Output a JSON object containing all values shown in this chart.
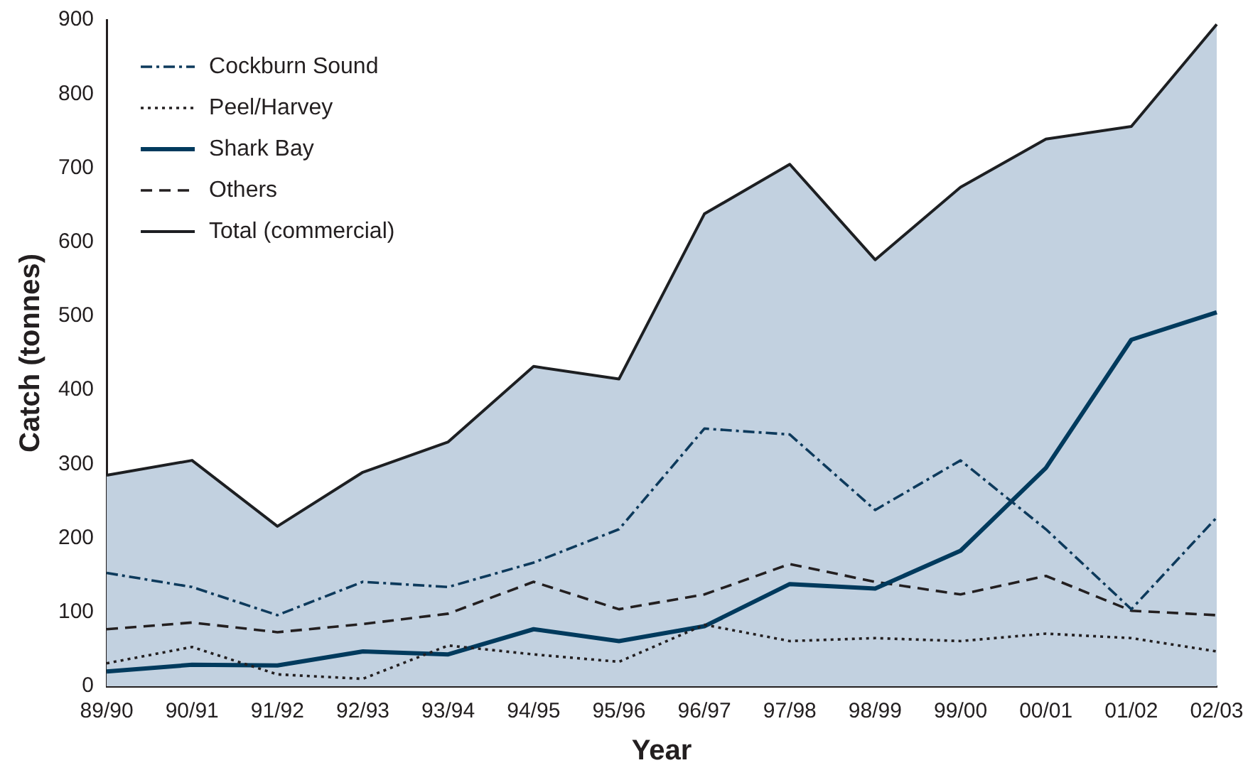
{
  "chart_data": {
    "type": "line",
    "xlabel": "Year",
    "ylabel": "Catch (tonnes)",
    "categories": [
      "89/90",
      "90/91",
      "91/92",
      "92/93",
      "93/94",
      "94/95",
      "95/96",
      "96/97",
      "97/98",
      "98/99",
      "99/00",
      "00/01",
      "01/02",
      "02/03"
    ],
    "series": [
      {
        "name": "Cockburn Sound",
        "color": "#0d3a5c",
        "line_style": "dashdot",
        "values": [
          153,
          134,
          96,
          141,
          134,
          167,
          212,
          348,
          340,
          238,
          305,
          212,
          104,
          228
        ]
      },
      {
        "name": "Peel/Harvey",
        "color": "#231f20",
        "line_style": "dotted",
        "values": [
          31,
          53,
          16,
          10,
          55,
          43,
          33,
          83,
          61,
          65,
          61,
          71,
          65,
          47
        ]
      },
      {
        "name": "Shark Bay",
        "color": "#003a5d",
        "line_style": "solid",
        "values": [
          20,
          29,
          28,
          47,
          43,
          77,
          61,
          81,
          138,
          132,
          183,
          295,
          468,
          505
        ]
      },
      {
        "name": "Others",
        "color": "#231f20",
        "line_style": "dashed",
        "values": [
          77,
          86,
          73,
          84,
          98,
          141,
          104,
          124,
          165,
          141,
          124,
          149,
          102,
          96
        ]
      },
      {
        "name": "Total (commercial)",
        "type": "area",
        "color": "#c2d1e0",
        "line_style": "solid",
        "values": [
          285,
          305,
          216,
          289,
          330,
          432,
          415,
          638,
          705,
          576,
          674,
          739,
          756,
          894
        ]
      }
    ],
    "ylim": [
      0,
      900
    ],
    "yticks": [
      0,
      100,
      200,
      300,
      400,
      500,
      600,
      700,
      800,
      900
    ],
    "grid": false,
    "legend": "top left",
    "marker": "none"
  }
}
